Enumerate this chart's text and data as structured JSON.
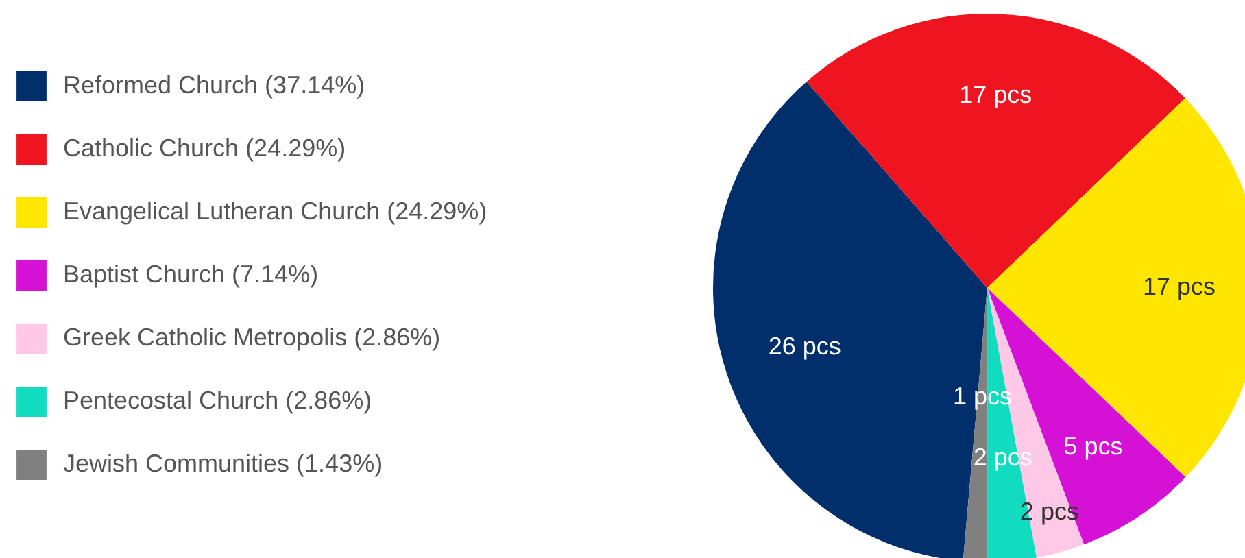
{
  "chart_data": {
    "type": "pie",
    "categories": [
      "Reformed Church (37.14%)",
      "Catholic Church (24.29%)",
      "Evangelical Lutheran Church (24.29%)",
      "Baptist Church (7.14%)",
      "Greek Catholic Metropolis (2.86%)",
      "Pentecostal Church (2.86%)",
      "Jewish Communities (1.43%)"
    ],
    "values": [
      26,
      17,
      17,
      5,
      2,
      2,
      1
    ],
    "value_labels": [
      "26 pcs",
      "17 pcs",
      "17 pcs",
      "5 pcs",
      "2 pcs",
      "2 pcs",
      "1 pcs"
    ],
    "colors": [
      "#002f6c",
      "#ee1520",
      "#ffe600",
      "#d611d6",
      "#ffc8e6",
      "#12dcc0",
      "#808080"
    ],
    "legend": "left"
  }
}
